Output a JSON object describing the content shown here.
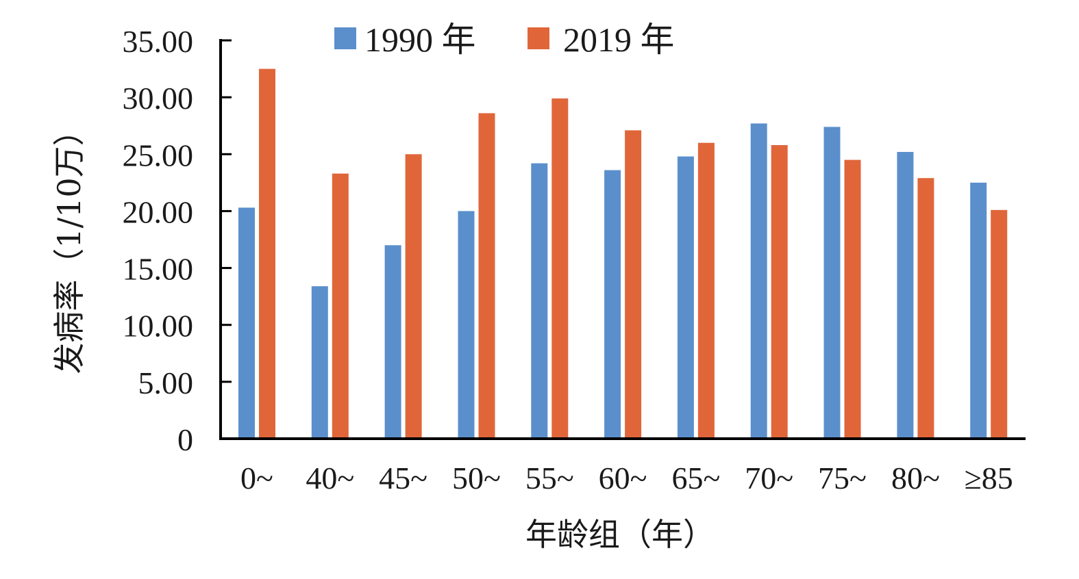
{
  "chart_data": {
    "type": "bar",
    "categories": [
      "0~",
      "40~",
      "45~",
      "50~",
      "55~",
      "60~",
      "65~",
      "70~",
      "75~",
      "80~",
      "≥85"
    ],
    "series": [
      {
        "name": "1990 年",
        "color": "#5B8FCC",
        "values": [
          20.3,
          13.4,
          17.0,
          20.0,
          24.2,
          23.6,
          24.8,
          27.7,
          27.4,
          25.2,
          22.5
        ]
      },
      {
        "name": "2019 年",
        "color": "#E0663A",
        "values": [
          32.5,
          23.3,
          25.0,
          28.6,
          29.9,
          27.1,
          26.0,
          25.8,
          24.5,
          22.9,
          20.1
        ]
      }
    ],
    "xlabel": "年龄组（年）",
    "ylabel": "发病率（1/10万）",
    "ylim": [
      0,
      35
    ],
    "yticks": [
      0,
      5,
      10,
      15,
      20,
      25,
      30,
      35
    ],
    "ytick_labels": [
      "0",
      "5.00",
      "10.00",
      "15.00",
      "20.00",
      "25.00",
      "30.00",
      "35.00"
    ],
    "grid": false,
    "legend_position": "top"
  }
}
